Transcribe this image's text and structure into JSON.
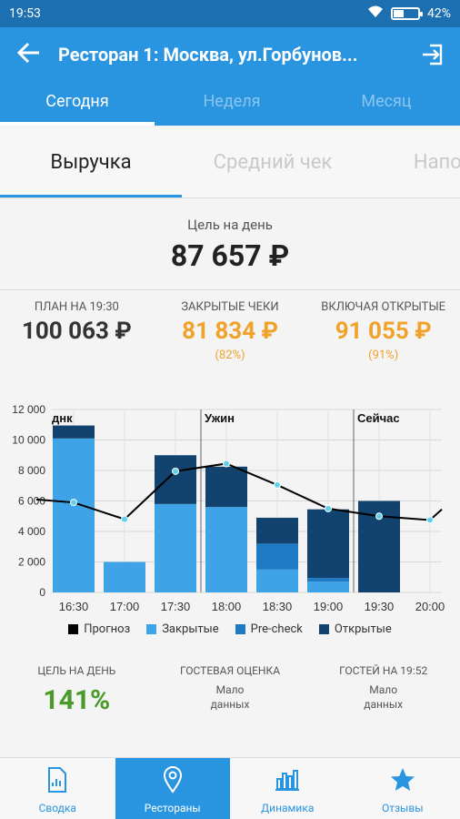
{
  "status_bar": {
    "time": "19:53",
    "battery": "42%",
    "battery_level": 0.42
  },
  "app_bar": {
    "title": "Ресторан 1: Москва, ул.Горбунов..."
  },
  "tabs": [
    {
      "label": "Сегодня",
      "active": true
    },
    {
      "label": "Неделя",
      "active": false
    },
    {
      "label": "Месяц",
      "active": false
    }
  ],
  "subtabs": [
    {
      "label": "Выручка",
      "active": true
    },
    {
      "label": "Средний чек",
      "active": false
    },
    {
      "label": "Наполня",
      "active": false
    }
  ],
  "goal": {
    "label": "Цель на день",
    "value": "87 657 ₽"
  },
  "stats": [
    {
      "label": "ПЛАН НА 19:30",
      "value": "100 063 ₽",
      "pct": "",
      "color": "#333333"
    },
    {
      "label": "ЗАКРЫТЫЕ ЧЕКИ",
      "value": "81 834 ₽",
      "pct": "(82%)",
      "color": "#f0a22a"
    },
    {
      "label": "ВКЛЮЧАЯ ОТКРЫТЫЕ",
      "value": "91 055 ₽",
      "pct": "(91%)",
      "color": "#f0a22a"
    }
  ],
  "chart_data": {
    "type": "bar",
    "categories": [
      "16:30",
      "17:00",
      "17:30",
      "18:00",
      "18:30",
      "19:00",
      "19:30",
      "20:00"
    ],
    "ylim": [
      0,
      12000
    ],
    "yticks": [
      "0",
      "2 000",
      "4 000",
      "6 000",
      "8 000",
      "10 000",
      "12 000"
    ],
    "series": [
      {
        "name": "Закрытые",
        "values": [
          10100,
          2000,
          5800,
          5600,
          1500,
          700,
          0,
          0
        ],
        "color": "#3fa3e8"
      },
      {
        "name": "Pre-check",
        "values": [
          0,
          0,
          0,
          0,
          1700,
          250,
          0,
          0
        ],
        "color": "#1d7ac3"
      },
      {
        "name": "Открытые",
        "values": [
          850,
          0,
          3200,
          2650,
          1700,
          4500,
          6000,
          0
        ],
        "color": "#12436e"
      }
    ],
    "line": {
      "name": "Прогноз",
      "color": "#000000",
      "x_values": [
        "16:00",
        "16:30",
        "17:00",
        "17:30",
        "18:00",
        "18:30",
        "19:00",
        "19:30",
        "20:00",
        "20:15"
      ],
      "values": [
        6100,
        5900,
        4800,
        7950,
        8450,
        7050,
        5500,
        5000,
        4750,
        5450
      ]
    },
    "annotations": [
      {
        "label": "днк",
        "at": "16:15"
      },
      {
        "label": "Ужин",
        "at": "17:45"
      },
      {
        "label": "Сейчас",
        "at": "19:15"
      }
    ],
    "legend": [
      {
        "label": "Прогноз",
        "color": "#000000"
      },
      {
        "label": "Закрытые",
        "color": "#3fa3e8"
      },
      {
        "label": "Pre-check",
        "color": "#1d7ac3"
      },
      {
        "label": "Открытые",
        "color": "#12436e"
      }
    ]
  },
  "kpis": [
    {
      "label": "ЦЕЛЬ НА ДЕНЬ",
      "value": "141%"
    },
    {
      "label": "ГОСТЕВАЯ ОЦЕНКА",
      "line1": "Мало",
      "line2": "данных"
    },
    {
      "label": "ГОСТЕЙ НА 19:52",
      "line1": "Мало",
      "line2": "данных"
    }
  ],
  "bottom_nav": [
    {
      "label": "Сводка",
      "icon": "document-icon",
      "active": false
    },
    {
      "label": "Рестораны",
      "icon": "location-pin-icon",
      "active": true
    },
    {
      "label": "Динамика",
      "icon": "bar-chart-icon",
      "active": false
    },
    {
      "label": "Отзывы",
      "icon": "star-icon",
      "active": false
    }
  ]
}
